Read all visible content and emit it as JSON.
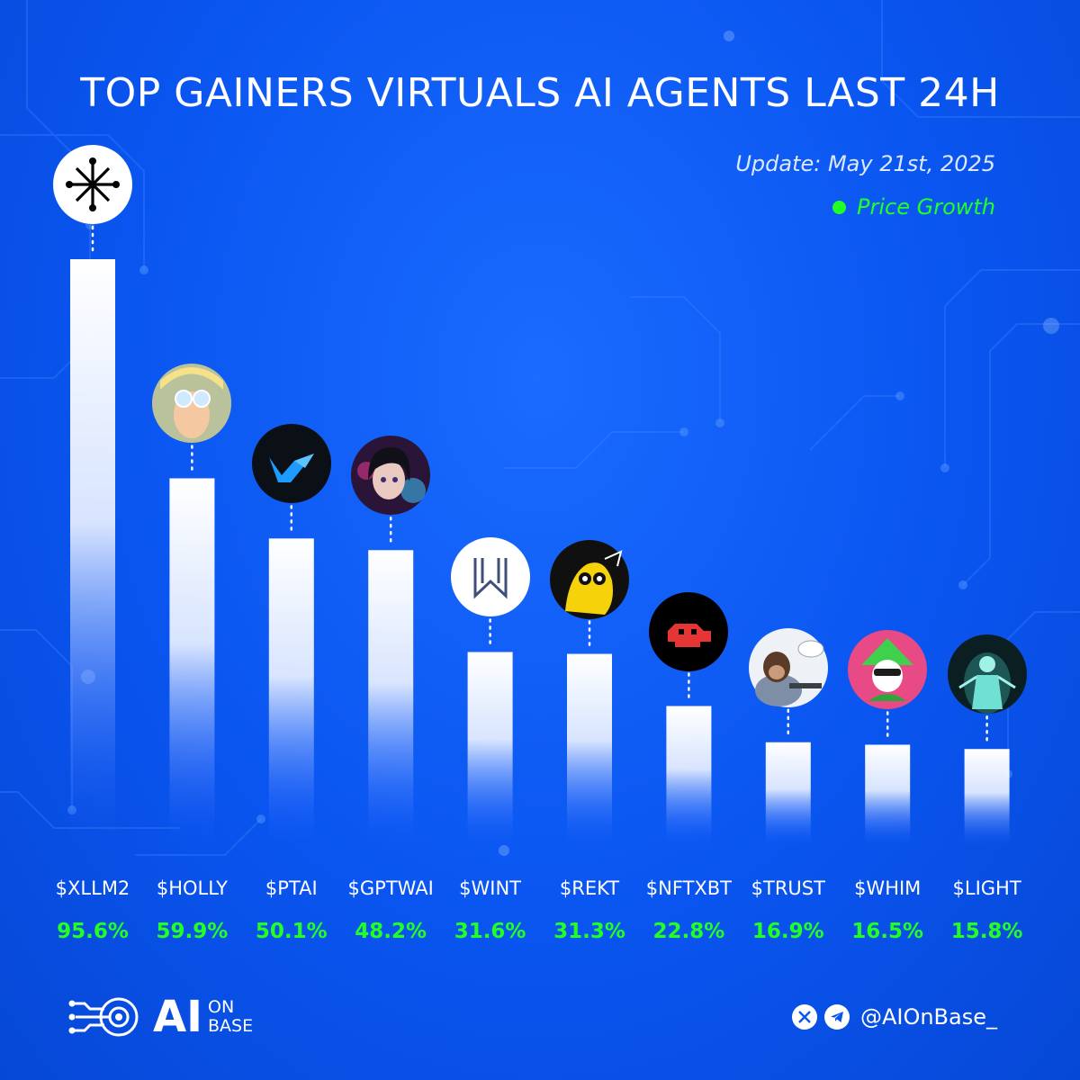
{
  "header": {
    "title": "TOP GAINERS VIRTUALS AI AGENTS LAST 24H",
    "update": "Update: May 21st, 2025"
  },
  "legend": {
    "label": "Price Growth",
    "color": "#22ff22"
  },
  "colors": {
    "background": "#0a55f0",
    "bar_top": "#ffffff",
    "bar_bottom": "#1a5cff",
    "value_text": "#22ff22"
  },
  "chart_data": {
    "type": "bar",
    "title": "TOP GAINERS VIRTUALS AI AGENTS LAST 24H",
    "categories": [
      "$XLLM2",
      "$HOLLY",
      "$PTAI",
      "$GPTWAI",
      "$WINT",
      "$REKT",
      "$NFTXBT",
      "$TRUST",
      "$WHIM",
      "$LIGHT"
    ],
    "value_labels": [
      "95.6%",
      "59.9%",
      "50.1%",
      "48.2%",
      "31.6%",
      "31.3%",
      "22.8%",
      "16.9%",
      "16.5%",
      "15.8%"
    ],
    "series": [
      {
        "name": "Price Growth",
        "values": [
          95.6,
          59.9,
          50.1,
          48.2,
          31.6,
          31.3,
          22.8,
          16.9,
          16.5,
          15.8
        ]
      }
    ],
    "icons": [
      "cross-network-logo",
      "holly-avatar",
      "ptai-logo",
      "gptwai-avatar",
      "wint-logo",
      "rekt-avatar",
      "nftxbt-avatar",
      "trust-chimp-avatar",
      "whim-jester-avatar",
      "light-figure-avatar"
    ],
    "grid": false,
    "legend_position": "top-right"
  },
  "footer": {
    "brand_main": "AI",
    "brand_sub_1": "ON",
    "brand_sub_2": "BASE",
    "handle": "@AIOnBase_",
    "social_icons": [
      "x-icon",
      "telegram-icon"
    ]
  }
}
